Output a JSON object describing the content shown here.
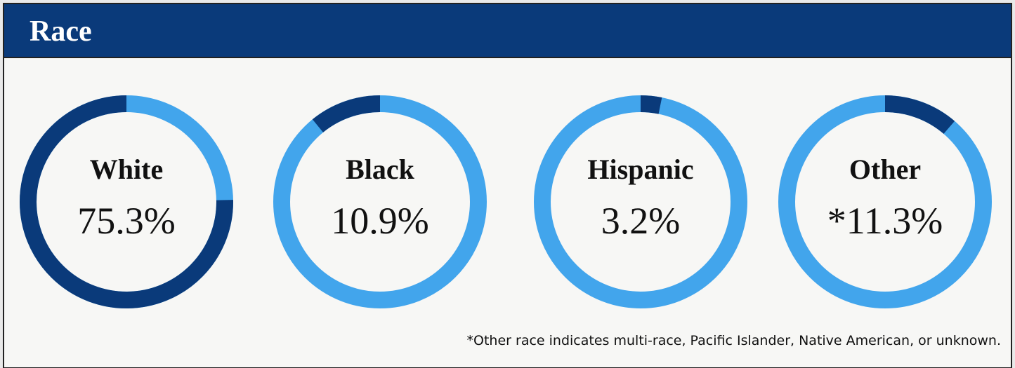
{
  "header": {
    "title": "Race"
  },
  "chart_data": [
    {
      "type": "donut",
      "title": "White",
      "values": [
        75.3
      ],
      "value_labels": [
        "75.3%"
      ],
      "color": "#0a3a7a",
      "track_color": "#42a5ec",
      "direction": "ccw"
    },
    {
      "type": "donut",
      "title": "Black",
      "values": [
        10.9
      ],
      "value_labels": [
        "10.9%"
      ],
      "color": "#0a3a7a",
      "track_color": "#42a5ec",
      "direction": "ccw"
    },
    {
      "type": "donut",
      "title": "Hispanic",
      "values": [
        3.2
      ],
      "value_labels": [
        "3.2%"
      ],
      "color": "#0a3a7a",
      "track_color": "#42a5ec",
      "direction": "cw"
    },
    {
      "type": "donut",
      "title": "Other",
      "values": [
        11.3
      ],
      "value_labels": [
        "*11.3%"
      ],
      "color": "#0a3a7a",
      "track_color": "#42a5ec",
      "direction": "cw"
    }
  ],
  "footnote": "*Other race indicates multi-race, Pacific Islander, Native American, or unknown."
}
